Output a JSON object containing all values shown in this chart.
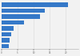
{
  "values": [
    20.8,
    13.5,
    12.0,
    7.0,
    3.8,
    3.0,
    2.5,
    2.2
  ],
  "bar_color": "#3579c8",
  "background_color": "#f2f2f2",
  "xmax": 24,
  "bar_height": 0.72,
  "grid_color": "#d9d9d9",
  "xticks": [
    0,
    5,
    10,
    15,
    20
  ],
  "fig_width": 1.0,
  "fig_height": 0.71
}
